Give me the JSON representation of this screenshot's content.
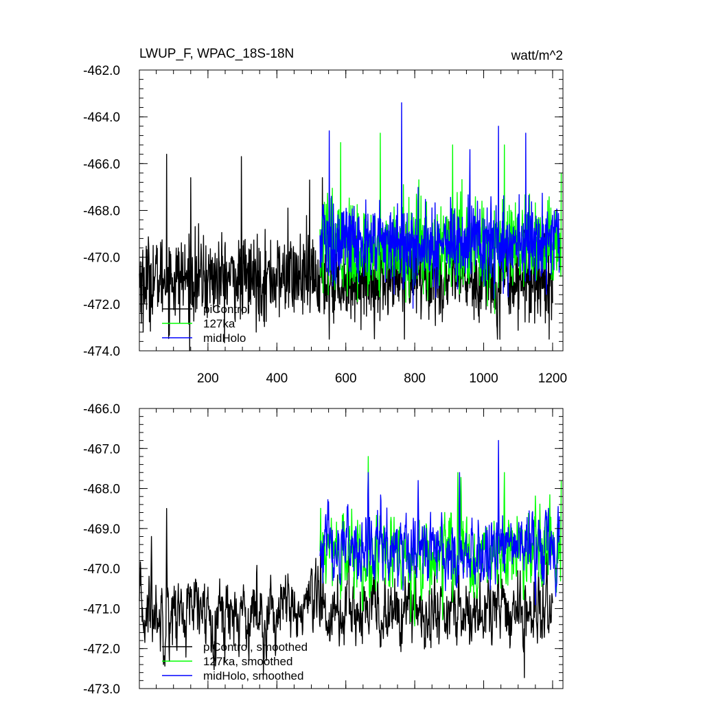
{
  "chart_data": [
    {
      "type": "line",
      "title": "LWUP_F, WPAC_18S-18N",
      "units_label": "watt/m^2",
      "xlabel": "",
      "ylabel": "",
      "xlim": [
        1,
        1230
      ],
      "ylim": [
        -474.0,
        -462.0
      ],
      "yticks": [
        -462.0,
        -464.0,
        -466.0,
        -468.0,
        -470.0,
        -472.0,
        -474.0
      ],
      "ytick_labels": [
        "-462.0",
        "-464.0",
        "-466.0",
        "-468.0",
        "-470.0",
        "-472.0",
        "-474.0"
      ],
      "xticks": [
        200,
        400,
        600,
        800,
        1000,
        1200
      ],
      "xtick_labels": [
        "200",
        "400",
        "600",
        "800",
        "1000",
        "1200"
      ],
      "legend_position": "bottom-left",
      "grid": false,
      "series": [
        {
          "name": "piControl",
          "color": "#000000",
          "x_start": 1,
          "x_end": 1200,
          "mean": -470.9,
          "sd": 0.9,
          "peaks": [
            [
              12,
              -473.2
            ],
            [
              80,
              -465.6
            ],
            [
              150,
              -466.6
            ],
            [
              297,
              -465.7
            ],
            [
              432,
              -467.9
            ],
            [
              495,
              -466.7
            ],
            [
              532,
              -466.6
            ],
            [
              552,
              -473.5
            ],
            [
              770,
              -473.5
            ],
            [
              1040,
              -473.5
            ],
            [
              1190,
              -473.5
            ]
          ]
        },
        {
          "name": "127ka",
          "color": "#00ff00",
          "x_start": 525,
          "x_end": 1225,
          "mean": -469.6,
          "sd": 1.0,
          "peaks": [
            [
              585,
              -465.1
            ],
            [
              700,
              -464.7
            ],
            [
              910,
              -465.2
            ],
            [
              1060,
              -465.2
            ],
            [
              1225,
              -466.4
            ]
          ]
        },
        {
          "name": "midHolo",
          "color": "#0000ff",
          "x_start": 525,
          "x_end": 1220,
          "mean": -469.4,
          "sd": 0.9,
          "peaks": [
            [
              552,
              -464.6
            ],
            [
              762,
              -463.4
            ],
            [
              960,
              -465.4
            ],
            [
              1043,
              -464.4
            ],
            [
              1122,
              -464.7
            ]
          ]
        }
      ]
    },
    {
      "type": "line",
      "title": "",
      "xlabel": "",
      "ylabel": "",
      "xlim": [
        1,
        1230
      ],
      "ylim": [
        -473.0,
        -466.0
      ],
      "yticks": [
        -466.0,
        -467.0,
        -468.0,
        -469.0,
        -470.0,
        -471.0,
        -472.0,
        -473.0
      ],
      "ytick_labels": [
        "-466.0",
        "-467.0",
        "-468.0",
        "-469.0",
        "-470.0",
        "-471.0",
        "-472.0",
        "-473.0"
      ],
      "xticks": [
        200,
        400,
        600,
        800,
        1000,
        1200
      ],
      "legend_position": "bottom-left",
      "grid": false,
      "series": [
        {
          "name": "piControl, smoothed",
          "color": "#000000",
          "x_start": 1,
          "x_end": 1200,
          "mean": -471.1,
          "sd": 0.45,
          "peaks": [
            [
              80,
              -468.5
            ],
            [
              36,
              -469.2
            ],
            [
              500,
              -470.0
            ],
            [
              527,
              -469.3
            ]
          ]
        },
        {
          "name": "127ka, smoothed",
          "color": "#00ff00",
          "x_start": 525,
          "x_end": 1225,
          "mean": -469.7,
          "sd": 0.5,
          "peaks": [
            [
              665,
              -467.2
            ],
            [
              925,
              -467.6
            ],
            [
              1060,
              -467.6
            ],
            [
              1225,
              -467.8
            ]
          ]
        },
        {
          "name": "midHolo, smoothed",
          "color": "#0000ff",
          "x_start": 525,
          "x_end": 1220,
          "mean": -469.5,
          "sd": 0.45,
          "peaks": [
            [
              665,
              -467.6
            ],
            [
              1043,
              -466.8
            ],
            [
              930,
              -467.6
            ],
            [
              810,
              -467.8
            ]
          ]
        }
      ]
    }
  ]
}
